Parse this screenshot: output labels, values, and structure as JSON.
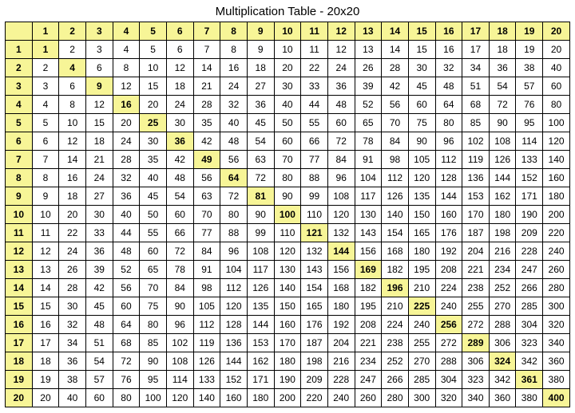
{
  "title": "Multiplication Table - 20x20",
  "size": 20,
  "colors": {
    "highlight": "#f7f597",
    "background": "#ffffff",
    "border": "#000000"
  },
  "font": {
    "title_size": 15,
    "cell_size": 12,
    "family": "Arial"
  },
  "headers": [
    1,
    2,
    3,
    4,
    5,
    6,
    7,
    8,
    9,
    10,
    11,
    12,
    13,
    14,
    15,
    16,
    17,
    18,
    19,
    20
  ]
}
